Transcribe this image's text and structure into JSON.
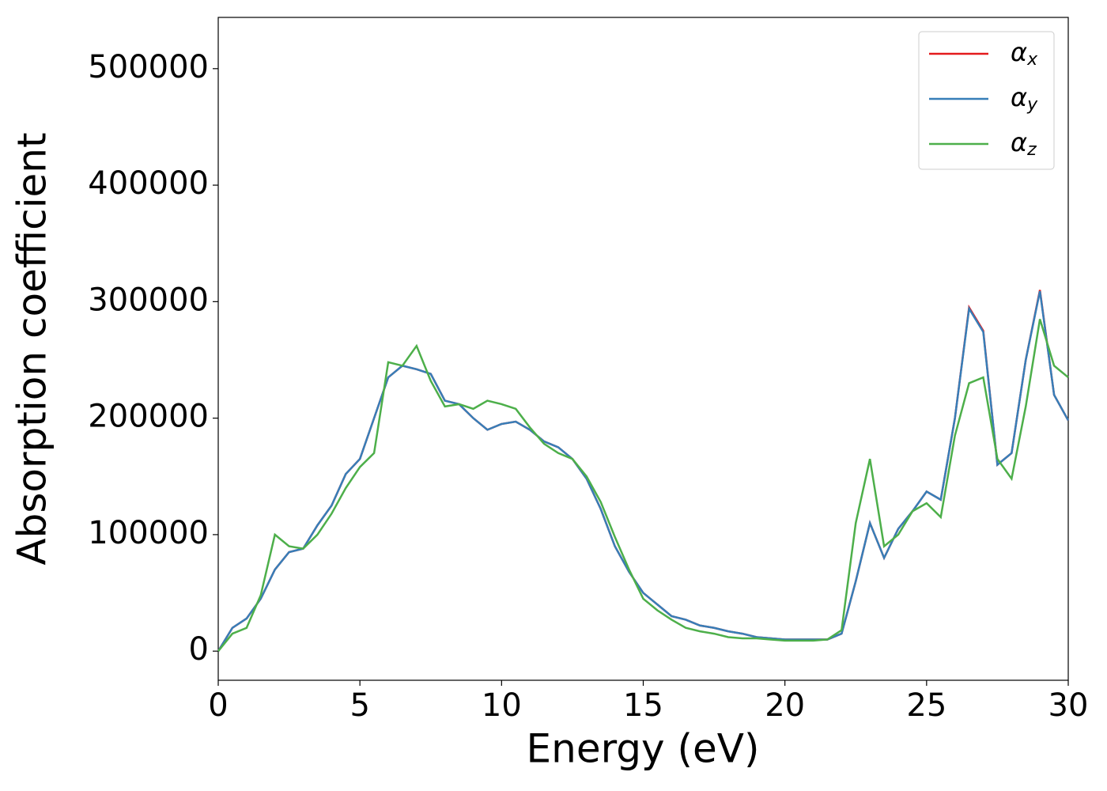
{
  "chart_data": {
    "type": "line",
    "xlabel": "Energy (eV)",
    "ylabel": "Absorption coefficient",
    "x": [
      0,
      0.5,
      1,
      1.5,
      2,
      2.5,
      3,
      3.5,
      4,
      4.5,
      5,
      5.5,
      6,
      6.5,
      7,
      7.5,
      8,
      8.5,
      9,
      9.5,
      10,
      10.5,
      11,
      11.5,
      12,
      12.5,
      13,
      13.5,
      14,
      14.5,
      15,
      15.5,
      16,
      16.5,
      17,
      17.5,
      18,
      18.5,
      19,
      19.5,
      20,
      20.5,
      21,
      21.5,
      22,
      22.5,
      23,
      23.5,
      24,
      24.5,
      25,
      25.5,
      26,
      26.5,
      27,
      27.5,
      28,
      28.5,
      29,
      29.5,
      30
    ],
    "series": [
      {
        "name": "αx",
        "color": "#e41a1c",
        "values": [
          0,
          20000,
          28000,
          45000,
          70000,
          85000,
          88000,
          108000,
          125000,
          152000,
          165000,
          200000,
          235000,
          245000,
          242000,
          238000,
          215000,
          212000,
          200000,
          190000,
          195000,
          197000,
          190000,
          180000,
          175000,
          165000,
          148000,
          122000,
          90000,
          68000,
          50000,
          40000,
          30000,
          27000,
          22000,
          20000,
          17000,
          15000,
          12000,
          11000,
          10000,
          10000,
          10000,
          10000,
          15000,
          60000,
          110000,
          80000,
          105000,
          120000,
          137000,
          130000,
          200000,
          295000,
          275000,
          160000,
          170000,
          250000,
          310000,
          220000,
          198000
        ]
      },
      {
        "name": "αy",
        "color": "#377eb8",
        "values": [
          0,
          20000,
          28000,
          45000,
          70000,
          85000,
          88000,
          108000,
          125000,
          152000,
          165000,
          200000,
          235000,
          245000,
          242000,
          238000,
          215000,
          212000,
          200000,
          190000,
          195000,
          197000,
          190000,
          180000,
          175000,
          165000,
          148000,
          122000,
          90000,
          68000,
          50000,
          40000,
          30000,
          27000,
          22000,
          20000,
          17000,
          15000,
          12000,
          11000,
          10000,
          10000,
          10000,
          10000,
          15000,
          60000,
          110000,
          80000,
          105000,
          120000,
          137000,
          130000,
          200000,
          294000,
          274000,
          160000,
          170000,
          250000,
          309000,
          220000,
          198000
        ]
      },
      {
        "name": "αz",
        "color": "#4daf4a",
        "values": [
          0,
          15000,
          20000,
          48000,
          100000,
          90000,
          88000,
          100000,
          118000,
          140000,
          158000,
          170000,
          248000,
          245000,
          262000,
          232000,
          210000,
          212000,
          208000,
          215000,
          212000,
          208000,
          192000,
          178000,
          170000,
          165000,
          150000,
          128000,
          98000,
          70000,
          45000,
          35000,
          27000,
          20000,
          17000,
          15000,
          12000,
          11000,
          11000,
          10000,
          9000,
          9000,
          9000,
          10000,
          18000,
          110000,
          165000,
          90000,
          100000,
          120000,
          127000,
          115000,
          185000,
          230000,
          235000,
          165000,
          148000,
          210000,
          285000,
          245000,
          235000
        ]
      }
    ],
    "xlim": [
      0,
      30
    ],
    "xticks": [
      0,
      5,
      10,
      15,
      20,
      25,
      30
    ],
    "ylim": [
      -25000,
      544000
    ],
    "yticks": [
      0,
      100000,
      200000,
      300000,
      400000,
      500000
    ],
    "grid": false,
    "legend": "upper right"
  }
}
